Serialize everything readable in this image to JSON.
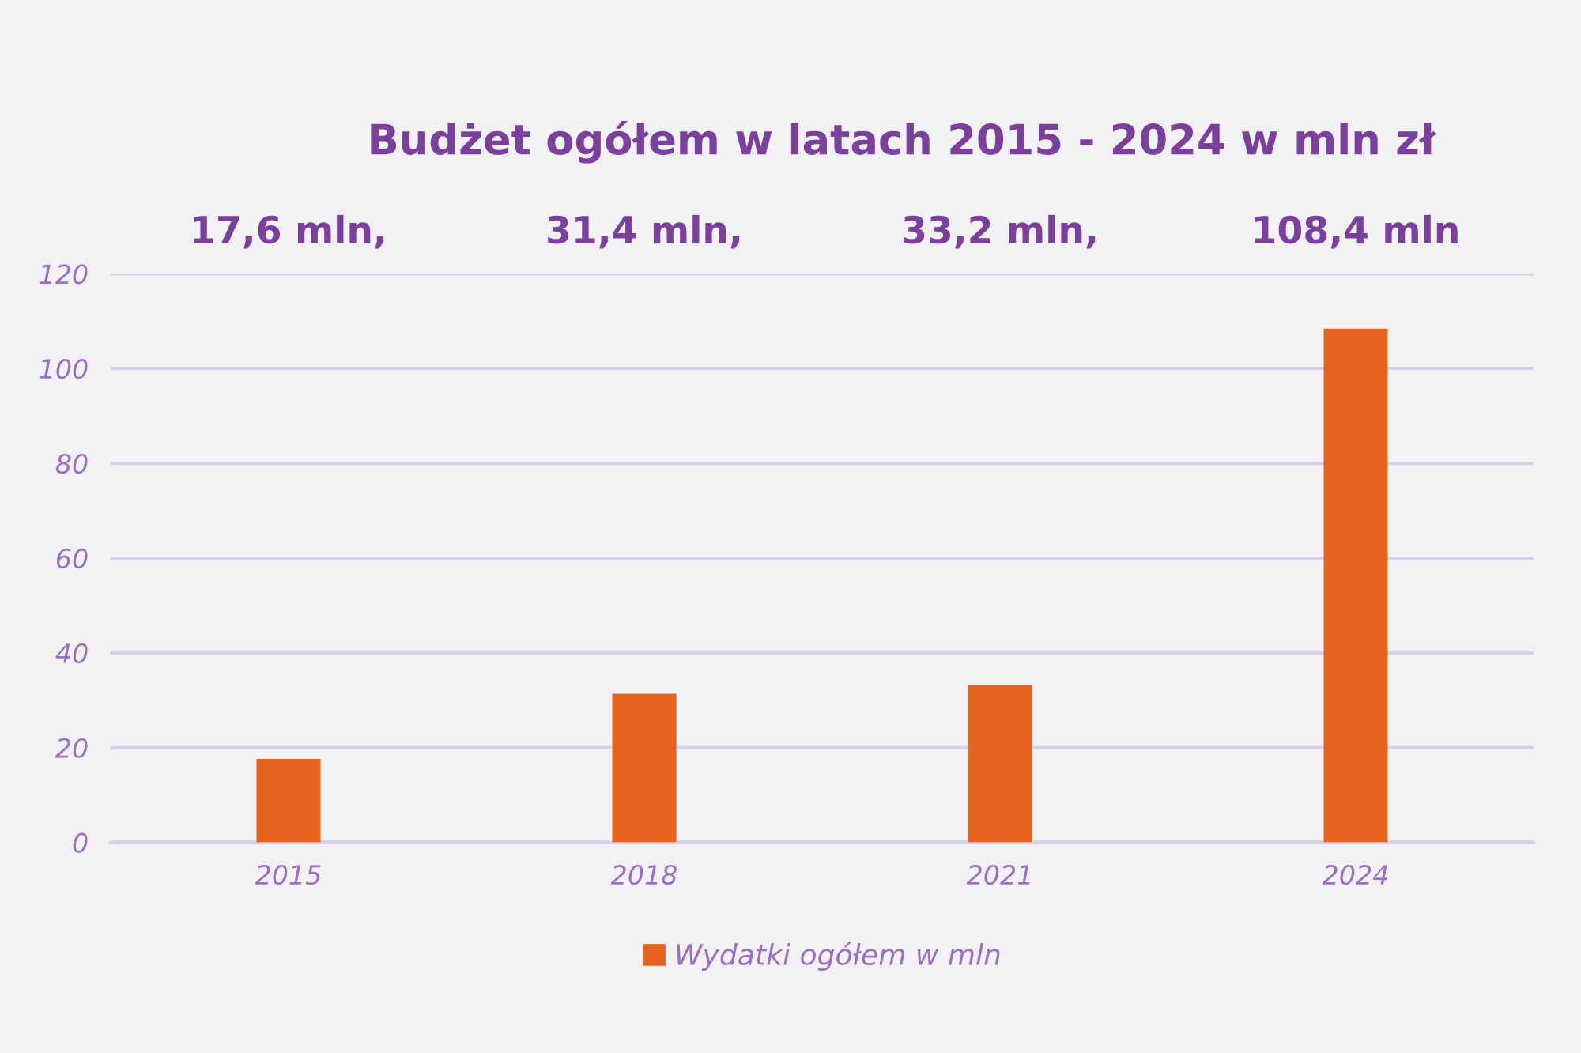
{
  "chart_data": {
    "type": "bar",
    "title": "Budżet ogółem w latach 2015 - 2024 w mln zł",
    "annotations": [
      "17,6 mln,",
      "31,4 mln,",
      "33,2 mln,",
      "108,4 mln"
    ],
    "categories": [
      "2015",
      "2018",
      "2021",
      "2024"
    ],
    "series": [
      {
        "name": "Wydatki ogółem w mln",
        "color": "#e8641e",
        "values": [
          17.6,
          31.4,
          33.2,
          108.4
        ]
      }
    ],
    "ylim": [
      0,
      120
    ],
    "yticks": [
      0,
      20,
      40,
      60,
      80,
      100,
      120
    ],
    "grid": "y",
    "legend": "bottom"
  }
}
